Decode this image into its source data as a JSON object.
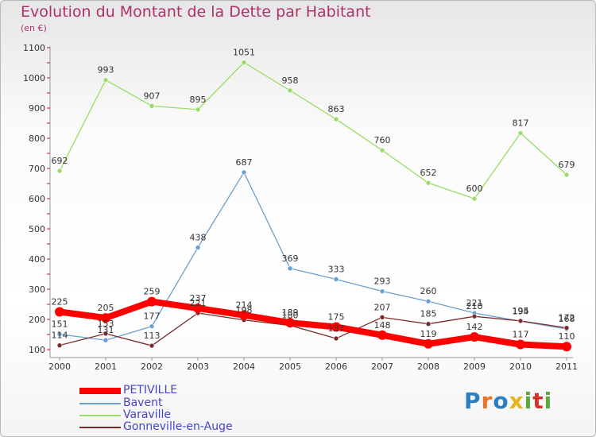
{
  "title": "Evolution du Montant de la Dette par Habitant",
  "subtitle": "(en €)",
  "logo": {
    "letters": [
      "P",
      "r",
      "o",
      "x",
      "i",
      "t",
      "i"
    ],
    "colors": [
      "#2a7ec1",
      "#e3762a",
      "#2a7ec1",
      "#e8b21f",
      "#5aa83a",
      "#d3322a",
      "#5aa83a"
    ]
  },
  "chart_data": {
    "type": "line",
    "title": "Evolution du Montant de la Dette par Habitant",
    "ylabel": "(en €)",
    "xlabel": "",
    "ylim": [
      100,
      1100
    ],
    "y_ticks": [
      100,
      200,
      300,
      400,
      500,
      600,
      700,
      800,
      900,
      1000,
      1100
    ],
    "categories": [
      "2000",
      "2001",
      "2002",
      "2003",
      "2004",
      "2005",
      "2006",
      "2007",
      "2008",
      "2009",
      "2010",
      "2011"
    ],
    "grid": false,
    "legend_position": "bottom-left",
    "series": [
      {
        "name": "PETIVILLE",
        "color": "#ff0000",
        "values": [
          225,
          205,
          259,
          237,
          214,
          189,
          175,
          148,
          119,
          142,
          117,
          110
        ]
      },
      {
        "name": "Bavent",
        "color": "#6aa0d0",
        "values": [
          151,
          131,
          177,
          438,
          687,
          369,
          333,
          293,
          260,
          221,
          194,
          168
        ]
      },
      {
        "name": "Varaville",
        "color": "#99dd66",
        "values": [
          692,
          993,
          907,
          895,
          1051,
          958,
          863,
          760,
          652,
          600,
          817,
          679
        ]
      },
      {
        "name": "Gonneville-en-Auge",
        "color": "#7a2a2a",
        "values": [
          114,
          153,
          113,
          221,
          198,
          180,
          137,
          207,
          185,
          210,
          195,
          172
        ]
      }
    ]
  }
}
